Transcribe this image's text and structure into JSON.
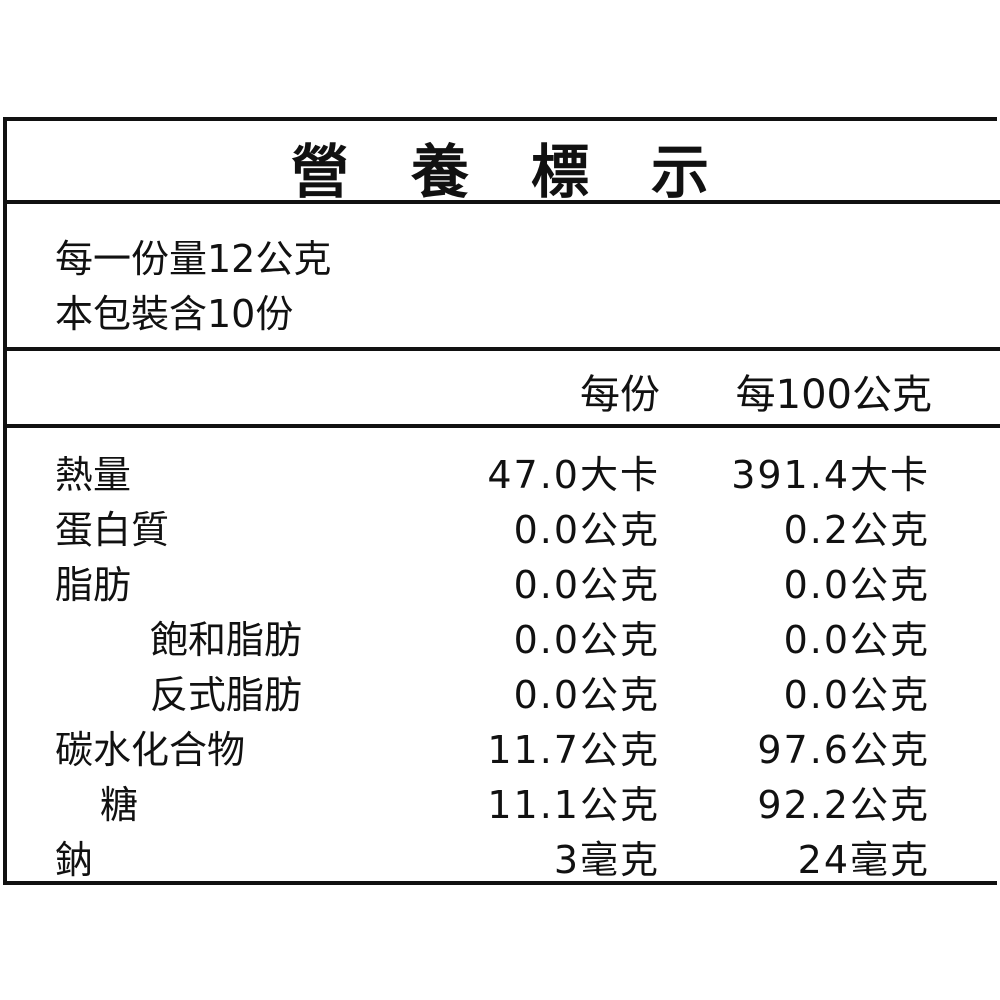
{
  "title": "營養標示",
  "serving": {
    "size": "每一份量12公克",
    "count": "本包裝含10份"
  },
  "columns": {
    "per_serving": "每份",
    "per_100g": "每100公克"
  },
  "rows": [
    {
      "label": "熱量",
      "indent": 0,
      "per_serving": "47.0大卡",
      "per_100g": "391.4大卡"
    },
    {
      "label": "蛋白質",
      "indent": 0,
      "per_serving": "0.0公克",
      "per_100g": "0.2公克"
    },
    {
      "label": "脂肪",
      "indent": 0,
      "per_serving": "0.0公克",
      "per_100g": "0.0公克"
    },
    {
      "label": "飽和脂肪",
      "indent": 2,
      "per_serving": "0.0公克",
      "per_100g": "0.0公克"
    },
    {
      "label": "反式脂肪",
      "indent": 2,
      "per_serving": "0.0公克",
      "per_100g": "0.0公克"
    },
    {
      "label": "碳水化合物",
      "indent": 0,
      "per_serving": "11.7公克",
      "per_100g": "97.6公克"
    },
    {
      "label": "糖",
      "indent": 1,
      "per_serving": "11.1公克",
      "per_100g": "92.2公克"
    },
    {
      "label": "鈉",
      "indent": 0,
      "per_serving": "3毫克",
      "per_100g": "24毫克"
    }
  ]
}
